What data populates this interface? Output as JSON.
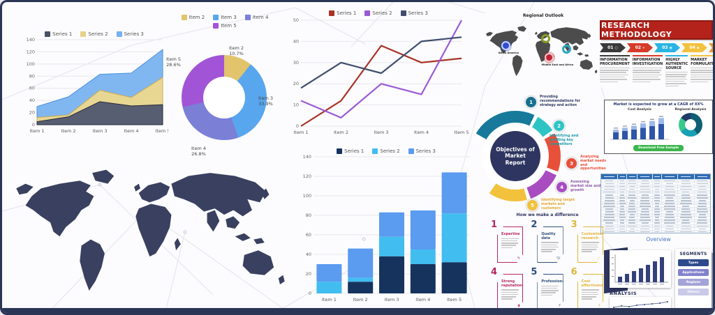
{
  "canvas": {
    "bg": "#fcfcfe",
    "border_color": "#2b3556",
    "accent_navy": "#2e3560"
  },
  "chart_data": [
    {
      "type": "area",
      "stacked": true,
      "categories": [
        "Item 1",
        "Item 2",
        "Item 3",
        "Item 4",
        "Item 5"
      ],
      "series": [
        {
          "name": "Series 1",
          "values": [
            5,
            13,
            38,
            31,
            33
          ],
          "color": "#4a5066",
          "edge": "#262b3d"
        },
        {
          "name": "Series 2",
          "values": [
            7,
            3,
            19,
            14,
            45
          ],
          "color": "#e6d28a",
          "edge": "#c9ad55"
        },
        {
          "name": "Series 3",
          "values": [
            18,
            30,
            26,
            40,
            46
          ],
          "color": "#76b1f0",
          "edge": "#4a90e0"
        }
      ],
      "ylim": [
        0,
        140
      ],
      "ystep": 20,
      "legend_position": "top",
      "grid": true
    },
    {
      "type": "pie",
      "slices": [
        {
          "label": "Item 2",
          "pct": 10.7,
          "color": "#e2c46d"
        },
        {
          "label": "Item 3",
          "pct": 33.9,
          "color": "#58a6ee"
        },
        {
          "label": "Item 4",
          "pct": 26.8,
          "color": "#7b7fd6"
        },
        {
          "label": "Item 5",
          "pct": 28.6,
          "color": "#a254d6"
        }
      ],
      "donut": true,
      "legend_position": "top"
    },
    {
      "type": "line",
      "categories": [
        "Item 1",
        "Item 2",
        "Item 3",
        "Item 4",
        "Item 5"
      ],
      "series": [
        {
          "name": "Series 1",
          "values": [
            0,
            12,
            38,
            30,
            32
          ],
          "color": "#a93226"
        },
        {
          "name": "Series 2",
          "values": [
            12,
            4,
            20,
            15,
            50
          ],
          "color": "#9b59d6"
        },
        {
          "name": "Series 3",
          "values": [
            18,
            30,
            25,
            40,
            42
          ],
          "color": "#3f4d6e"
        }
      ],
      "ylim": [
        0,
        50
      ],
      "ystep": 10,
      "legend_position": "top",
      "grid": true
    },
    {
      "type": "bar",
      "stacked": true,
      "categories": [
        "Item 1",
        "Item 2",
        "Item 3",
        "Item 4",
        "Item 5"
      ],
      "series": [
        {
          "name": "Series 1",
          "values": [
            0,
            12,
            38,
            30,
            32
          ],
          "color": "#16335e"
        },
        {
          "name": "Series 2",
          "values": [
            12,
            4,
            20,
            15,
            50
          ],
          "color": "#41bdf0"
        },
        {
          "name": "Series 3",
          "values": [
            18,
            30,
            25,
            40,
            42
          ],
          "color": "#5b9bf0"
        }
      ],
      "ylim": [
        0,
        140
      ],
      "ystep": 20,
      "legend_position": "top",
      "grid": true
    }
  ],
  "regional": {
    "title": "Regional Outlook",
    "markers": [
      {
        "label": "North America",
        "color": "#2f4dd0",
        "style": "filled",
        "show_label": true
      },
      {
        "label": "Europe",
        "color": "#8a9a28",
        "style": "ring",
        "show_label": false
      },
      {
        "label": "Middle East and Africa",
        "color": "#c02434",
        "style": "filled",
        "show_label": true
      },
      {
        "label": "Asia Pacific",
        "color": "#2aa8c0",
        "style": "ring",
        "show_label": false
      }
    ]
  },
  "methodology": {
    "title": "RESEARCH METHODOLOGY",
    "steps": [
      {
        "num": "01",
        "color": "#3a3a3a",
        "heading": "INFORMATION PROCUREMENT"
      },
      {
        "num": "02",
        "color": "#d63b2a",
        "heading": "INFORMATION INVESTIGATION"
      },
      {
        "num": "03",
        "color": "#29b4e4",
        "heading": "HIGHLY AUTHENTIC SOURCE"
      },
      {
        "num": "04",
        "color": "#f2c23c",
        "heading": "MARKET FORMULATION"
      },
      {
        "num": "05",
        "color": "#f09a30",
        "heading": ""
      }
    ]
  },
  "objectives": {
    "center": "Objectives of Market Report",
    "items": [
      {
        "num": "1",
        "color": "#17708e",
        "text_color": "#2e3560",
        "text": "Providing recommendations for strategy and action"
      },
      {
        "num": "2",
        "color": "#2ec4c4",
        "text_color": "#1d9aa8",
        "text": "Identifying and profiling key competitors"
      },
      {
        "num": "3",
        "color": "#e8503a",
        "text_color": "#e8503a",
        "text": "Analyzing market needs and opportunities"
      },
      {
        "num": "4",
        "color": "#a84cc0",
        "text_color": "#8e5aa8",
        "text": "Assessing market size and growth"
      },
      {
        "num": "5",
        "color": "#f2c23c",
        "text_color": "#e2a92e",
        "text": "Identifying target markets and customers"
      }
    ]
  },
  "cagr": {
    "title": "Market is expected to grow at a CAGR of XX%",
    "left_title": "Cost Analysis",
    "right_title": "Regional Analysis",
    "button": "Download Free Sample",
    "bar_values": [
      20,
      24,
      28,
      33,
      38,
      44
    ],
    "donut": [
      {
        "color": "#0e5f73",
        "pct": 40
      },
      {
        "color": "#18a0b4",
        "pct": 25
      },
      {
        "color": "#38c98c",
        "pct": 20
      },
      {
        "color": "#223a66",
        "pct": 15
      }
    ]
  },
  "difference": {
    "title": "How we make a difference",
    "cards": [
      {
        "num": "1",
        "heading": "Expertise",
        "color": "#b5275f",
        "glyph": "✎"
      },
      {
        "num": "2",
        "heading": "Quality data",
        "color": "#2e4f7a",
        "glyph": "%"
      },
      {
        "num": "3",
        "heading": "Customized research",
        "color": "#e0b53a",
        "glyph": "◇"
      },
      {
        "num": "4",
        "heading": "Strong reputation",
        "color": "#b5275f",
        "glyph": "♦"
      },
      {
        "num": "5",
        "heading": "Professionalism",
        "color": "#2e4f7a",
        "glyph": "§"
      },
      {
        "num": "6",
        "heading": "Cost effectiveness",
        "color": "#e0b53a",
        "glyph": "$"
      }
    ]
  },
  "overview": {
    "title": "Overview",
    "analysis_label": "ANALYSIS",
    "segments_title": "SEGMENTS",
    "segments": [
      {
        "label": "Types",
        "color": "#2e4a8c"
      },
      {
        "label": "Applications",
        "color": "#8282cc"
      },
      {
        "label": "Regions",
        "color": "#a3a3d8"
      },
      {
        "label": "Others",
        "color": "#cacae8"
      }
    ],
    "bar_values": [
      8,
      12,
      16,
      20,
      25,
      30,
      36
    ],
    "line_values": [
      4,
      6,
      5,
      7,
      8,
      9,
      10,
      12
    ]
  }
}
